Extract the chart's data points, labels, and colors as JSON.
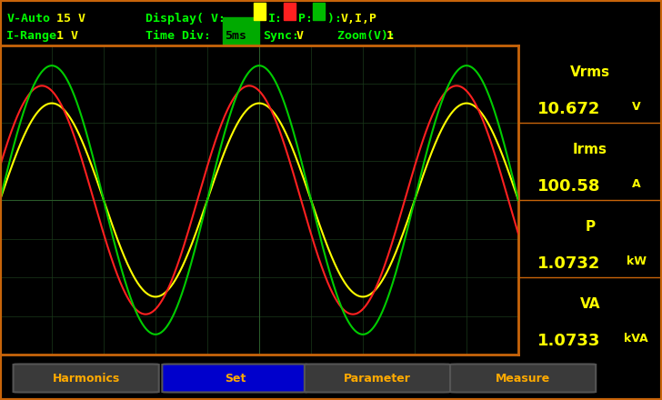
{
  "bg_color": "#000000",
  "header_bg": "#000000",
  "oscilloscope_bg": "#000000",
  "grid_color": "#1a3a1a",
  "border_color": "#c8640a",
  "header_text_color": "#00ff00",
  "header_highlight_color": "#ffff00",
  "panel_bg": "#0a0a0a",
  "waveform_yellow": "#ffff00",
  "waveform_red": "#ff2020",
  "waveform_green": "#00cc00",
  "readout_color": "#ffff00",
  "readout_label_color": "#ffff00",
  "header_line1": "V-Auto   15 V       Display( V:  I:  P:  ): V,I,P",
  "header_line2": "I-Range  1 V        Time Div:  5ms  Sync: V    Zoom(V): 1",
  "vrms_label": "Vrms",
  "vrms_value": "10.672",
  "vrms_unit": "V",
  "irms_label": "Irms",
  "irms_value": "100.58",
  "irms_unit": "A",
  "p_label": "P",
  "p_value": "1.0732",
  "p_unit": "kW",
  "va_label": "VA",
  "va_value": "1.0733",
  "va_unit": "kVA",
  "btn_harmonics": "Harmonics",
  "btn_set": "Set",
  "btn_parameter": "Parameter",
  "btn_measure": "Measure",
  "grid_cols": 10,
  "grid_rows": 8,
  "yellow_amplitude": 0.72,
  "yellow_phase": 0.0,
  "yellow_freq": 2.5,
  "red_amplitude": 0.85,
  "red_phase": 0.3,
  "red_freq": 2.5,
  "green_amplitude": 1.0,
  "green_phase": 0.0,
  "green_freq": 2.5
}
